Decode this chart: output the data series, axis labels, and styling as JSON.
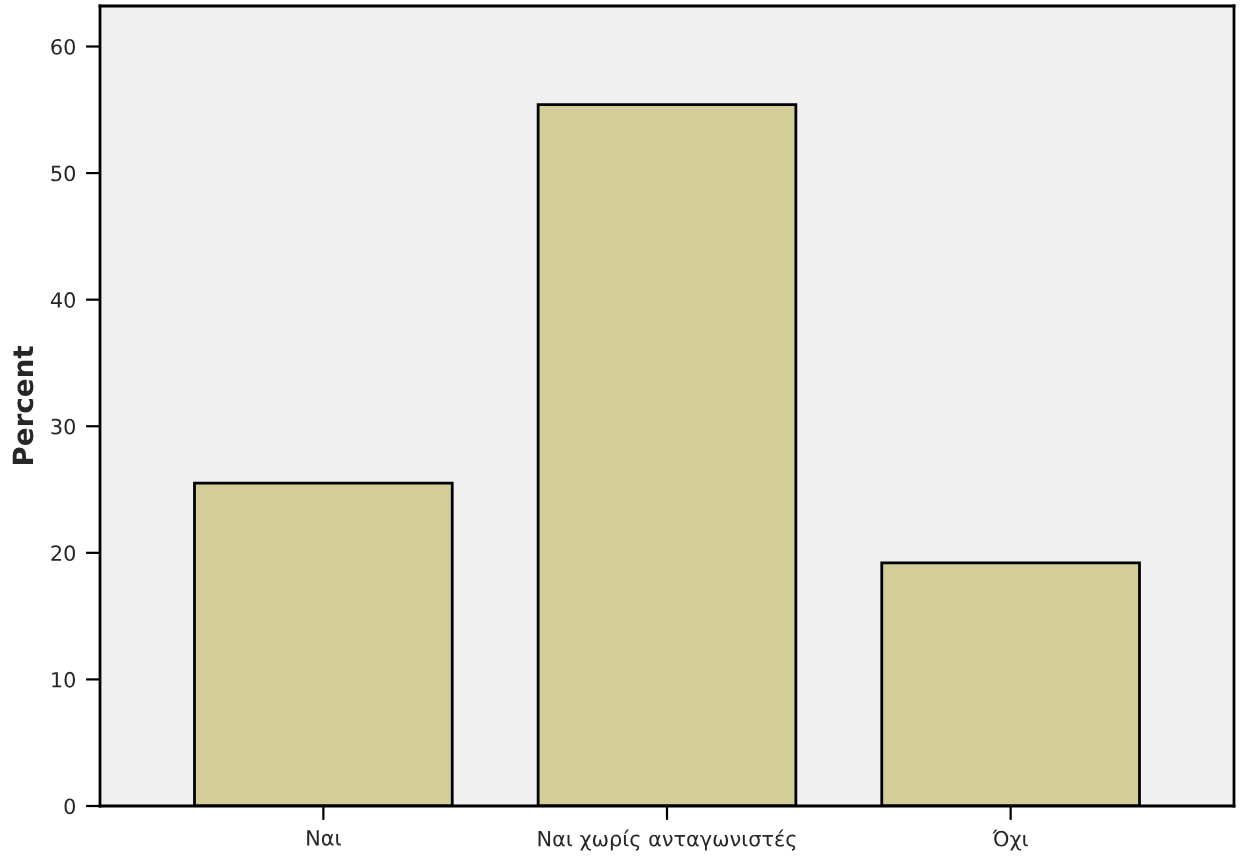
{
  "chart_data": {
    "type": "bar",
    "ylabel": "Percent",
    "categories": [
      "Ναι",
      "Ναι χωρίς ανταγωνιστές",
      "Όχι"
    ],
    "values": [
      25.5,
      55.4,
      19.2
    ],
    "color": "#d3ce97",
    "ylim": [
      0,
      63.2
    ],
    "yticks": [
      0,
      10,
      20,
      30,
      40,
      50,
      60
    ],
    "grid": false
  }
}
